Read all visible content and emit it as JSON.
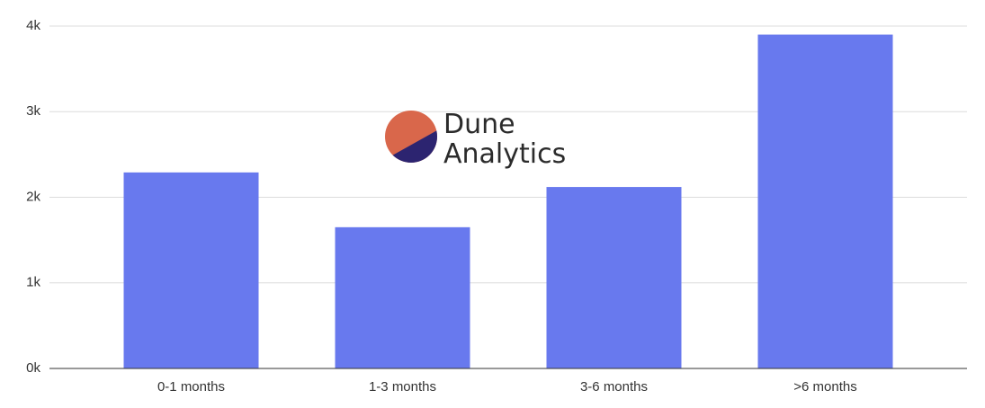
{
  "chart_data": {
    "type": "bar",
    "categories": [
      "0-1 months",
      "1-3 months",
      "3-6 months",
      ">6 months"
    ],
    "values": [
      2290,
      1650,
      2120,
      3900
    ],
    "color": "#6879ee",
    "ylim": [
      0,
      4000
    ],
    "yticks": [
      {
        "value": 0,
        "label": "0k"
      },
      {
        "value": 1000,
        "label": "1k"
      },
      {
        "value": 2000,
        "label": "2k"
      },
      {
        "value": 3000,
        "label": "3k"
      },
      {
        "value": 4000,
        "label": "4k"
      }
    ],
    "grid": true,
    "watermark": [
      "Dune",
      "Analytics"
    ]
  }
}
